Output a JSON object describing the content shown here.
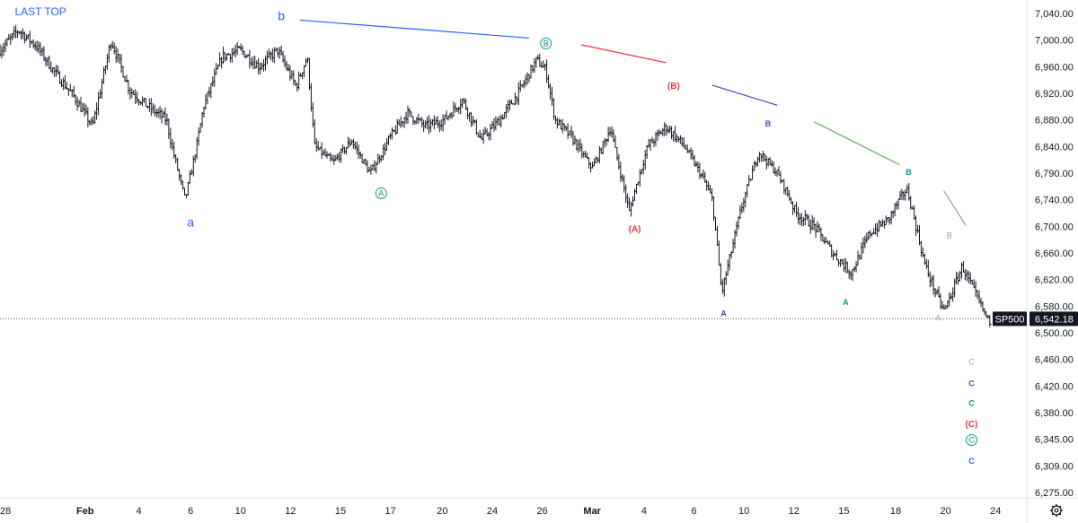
{
  "chart_data": {
    "type": "ohlc",
    "title": "LAST TOP",
    "symbol": "SP500",
    "last_price": "6,542.18",
    "ylim": [
      6260,
      7055
    ],
    "x_range": [
      0,
      57
    ],
    "y_ticks": [
      {
        "v": 7040,
        "label": "7,040.00"
      },
      {
        "v": 7000,
        "label": "7,000.00"
      },
      {
        "v": 6960,
        "label": "6,960.00"
      },
      {
        "v": 6920,
        "label": "6,920.00"
      },
      {
        "v": 6880,
        "label": "6,880.00"
      },
      {
        "v": 6840,
        "label": "6,840.00"
      },
      {
        "v": 6790,
        "label": "6,790.00"
      },
      {
        "v": 6740,
        "label": "6,740.00"
      },
      {
        "v": 6700,
        "label": "6,700.00"
      },
      {
        "v": 6660,
        "label": "6,660.00"
      },
      {
        "v": 6620,
        "label": "6,620.00"
      },
      {
        "v": 6580,
        "label": "6,580.00"
      },
      {
        "v": 6500,
        "label": "6,500.00"
      },
      {
        "v": 6460,
        "label": "6,460.00"
      },
      {
        "v": 6420,
        "label": "6,420.00"
      },
      {
        "v": 6380,
        "label": "6,380.00"
      },
      {
        "v": 6345,
        "label": "6,345.00"
      },
      {
        "v": 6309,
        "label": "6,309.00"
      },
      {
        "v": 6275,
        "label": "6,275.00"
      }
    ],
    "x_ticks": [
      {
        "d": 0.3,
        "label": "28",
        "bold": false
      },
      {
        "d": 4.6,
        "label": "Feb",
        "bold": true
      },
      {
        "d": 7.5,
        "label": "4",
        "bold": false
      },
      {
        "d": 10.3,
        "label": "6",
        "bold": false
      },
      {
        "d": 13.0,
        "label": "10",
        "bold": false
      },
      {
        "d": 15.7,
        "label": "12",
        "bold": false
      },
      {
        "d": 18.4,
        "label": "15",
        "bold": false
      },
      {
        "d": 21.1,
        "label": "17",
        "bold": false
      },
      {
        "d": 23.9,
        "label": "20",
        "bold": false
      },
      {
        "d": 26.6,
        "label": "24",
        "bold": false
      },
      {
        "d": 29.3,
        "label": "26",
        "bold": false
      },
      {
        "d": 32.0,
        "label": "Mar",
        "bold": true
      },
      {
        "d": 34.8,
        "label": "4",
        "bold": false
      },
      {
        "d": 37.5,
        "label": "6",
        "bold": false
      },
      {
        "d": 40.2,
        "label": "10",
        "bold": false
      },
      {
        "d": 42.9,
        "label": "12",
        "bold": false
      },
      {
        "d": 45.6,
        "label": "15",
        "bold": false
      },
      {
        "d": 48.4,
        "label": "18",
        "bold": false
      },
      {
        "d": 51.1,
        "label": "20",
        "bold": false
      },
      {
        "d": 53.8,
        "label": "24",
        "bold": false
      }
    ],
    "price_path": [
      [
        0.0,
        6985
      ],
      [
        1.0,
        7015
      ],
      [
        2.0,
        6990
      ],
      [
        3.0,
        6950
      ],
      [
        4.0,
        6915
      ],
      [
        5.0,
        6870
      ],
      [
        6.0,
        7000
      ],
      [
        7.0,
        6925
      ],
      [
        8.0,
        6900
      ],
      [
        9.0,
        6880
      ],
      [
        10.0,
        6740
      ],
      [
        11.0,
        6900
      ],
      [
        12.0,
        6975
      ],
      [
        13.0,
        6985
      ],
      [
        14.0,
        6960
      ],
      [
        15.0,
        6985
      ],
      [
        16.0,
        6930
      ],
      [
        16.6,
        6975
      ],
      [
        17.0,
        6840
      ],
      [
        18.0,
        6810
      ],
      [
        19.0,
        6850
      ],
      [
        20.0,
        6790
      ],
      [
        21.0,
        6850
      ],
      [
        22.0,
        6890
      ],
      [
        23.0,
        6870
      ],
      [
        24.0,
        6880
      ],
      [
        25.0,
        6910
      ],
      [
        26.0,
        6850
      ],
      [
        27.0,
        6880
      ],
      [
        28.0,
        6920
      ],
      [
        29.0,
        6970
      ],
      [
        29.5,
        6955
      ],
      [
        30.0,
        6880
      ],
      [
        31.0,
        6850
      ],
      [
        32.0,
        6800
      ],
      [
        33.0,
        6870
      ],
      [
        34.0,
        6720
      ],
      [
        35.0,
        6840
      ],
      [
        36.0,
        6870
      ],
      [
        37.0,
        6840
      ],
      [
        38.0,
        6780
      ],
      [
        38.5,
        6740
      ],
      [
        39.0,
        6600
      ],
      [
        40.0,
        6720
      ],
      [
        41.0,
        6830
      ],
      [
        42.0,
        6790
      ],
      [
        43.0,
        6720
      ],
      [
        44.0,
        6700
      ],
      [
        45.0,
        6660
      ],
      [
        46.0,
        6630
      ],
      [
        47.0,
        6690
      ],
      [
        48.0,
        6710
      ],
      [
        49.0,
        6760
      ],
      [
        50.0,
        6640
      ],
      [
        51.0,
        6570
      ],
      [
        52.0,
        6640
      ],
      [
        53.0,
        6580
      ],
      [
        53.5,
        6530
      ]
    ],
    "wave_lines": [
      {
        "from": [
          16.2,
          7030
        ],
        "to": [
          28.6,
          7003
        ],
        "color": "#2962ff"
      },
      {
        "from": [
          31.4,
          6993
        ],
        "to": [
          36.0,
          6966
        ],
        "color": "#f23645"
      },
      {
        "from": [
          38.5,
          6932
        ],
        "to": [
          42.0,
          6902
        ],
        "color": "#673ab7"
      },
      {
        "from": [
          44.0,
          6877
        ],
        "to": [
          48.6,
          6806
        ],
        "color": "#4caf50"
      },
      {
        "from": [
          51.0,
          6757
        ],
        "to": [
          52.2,
          6701
        ],
        "color": "#9e9e9e"
      }
    ],
    "wave_labels": [
      {
        "text": "LAST TOP",
        "d": 0.8,
        "v": 7037,
        "color": "#2962ff",
        "size": 12,
        "anchor": "start",
        "bold": false,
        "circle": false
      },
      {
        "text": "b",
        "d": 15.2,
        "v": 7030,
        "color": "#2962ff",
        "size": 14,
        "anchor": "middle",
        "bold": false,
        "circle": false
      },
      {
        "text": "a",
        "d": 10.3,
        "v": 6700,
        "color": "#2962ff",
        "size": 14,
        "anchor": "middle",
        "bold": false,
        "circle": false
      },
      {
        "text": "A",
        "d": 20.6,
        "v": 6752,
        "color": "#089981",
        "size": 9,
        "anchor": "middle",
        "bold": false,
        "circle": true
      },
      {
        "text": "B",
        "d": 29.5,
        "v": 6995,
        "color": "#089981",
        "size": 9,
        "anchor": "middle",
        "bold": false,
        "circle": true
      },
      {
        "text": "(A)",
        "d": 34.3,
        "v": 6692,
        "color": "#f23645",
        "size": 10,
        "anchor": "middle",
        "bold": true,
        "circle": false
      },
      {
        "text": "(B)",
        "d": 36.4,
        "v": 6927,
        "color": "#f23645",
        "size": 10,
        "anchor": "middle",
        "bold": true,
        "circle": false
      },
      {
        "text": "A",
        "d": 39.1,
        "v": 6550,
        "color": "#673ab7",
        "size": 9,
        "anchor": "middle",
        "bold": true,
        "circle": false
      },
      {
        "text": "B",
        "d": 41.5,
        "v": 6870,
        "color": "#673ab7",
        "size": 9,
        "anchor": "middle",
        "bold": true,
        "circle": false
      },
      {
        "text": "A",
        "d": 45.7,
        "v": 6582,
        "color": "#089981",
        "size": 9,
        "anchor": "middle",
        "bold": true,
        "circle": false
      },
      {
        "text": "B",
        "d": 49.1,
        "v": 6787,
        "color": "#089981",
        "size": 9,
        "anchor": "middle",
        "bold": true,
        "circle": false
      },
      {
        "text": "B",
        "d": 51.3,
        "v": 6682,
        "color": "#9e9e9e",
        "size": 9,
        "anchor": "middle",
        "bold": false,
        "circle": false
      },
      {
        "text": "A",
        "d": 50.7,
        "v": 6536,
        "color": "#9e9e9e",
        "size": 9,
        "anchor": "middle",
        "bold": false,
        "circle": false
      },
      {
        "text": "C",
        "d": 52.5,
        "v": 6452,
        "color": "#9e9e9e",
        "size": 9,
        "anchor": "middle",
        "bold": false,
        "circle": false
      },
      {
        "text": "C",
        "d": 52.5,
        "v": 6420,
        "color": "#673ab7",
        "size": 9,
        "anchor": "middle",
        "bold": true,
        "circle": false
      },
      {
        "text": "C",
        "d": 52.5,
        "v": 6390,
        "color": "#089981",
        "size": 9,
        "anchor": "middle",
        "bold": true,
        "circle": false
      },
      {
        "text": "(C)",
        "d": 52.5,
        "v": 6361,
        "color": "#f23645",
        "size": 10,
        "anchor": "middle",
        "bold": true,
        "circle": false
      },
      {
        "text": "C",
        "d": 52.5,
        "v": 6344,
        "color": "#089981",
        "size": 9,
        "anchor": "middle",
        "bold": false,
        "circle": true
      },
      {
        "text": "C",
        "d": 52.5,
        "v": 6312,
        "color": "#2962ff",
        "size": 9,
        "anchor": "middle",
        "bold": true,
        "circle": false
      }
    ],
    "colors": {
      "bars": "#131722",
      "axis_text": "#131722",
      "badge_bg": "#131722",
      "badge_text": "#ffffff",
      "price_line": "#555555"
    }
  },
  "ui": {
    "settings_icon": "gear-icon"
  }
}
